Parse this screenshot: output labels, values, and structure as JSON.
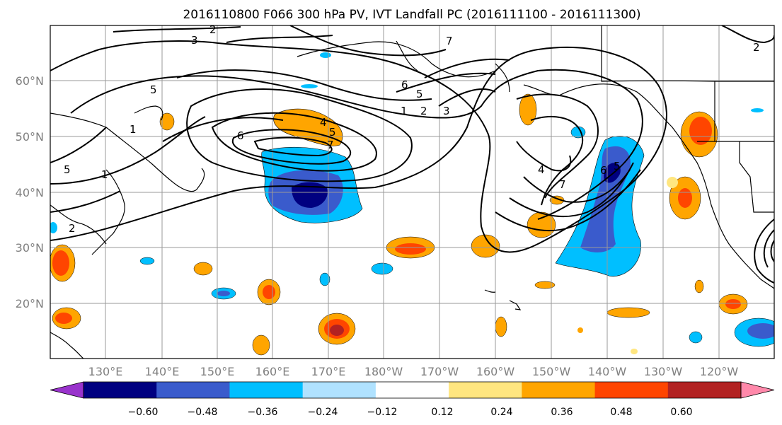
{
  "title": "2016110800 F066 300 hPa PV, IVT Landfall PC (2016111100 - 2016111300)",
  "lat_labels": [
    "60°N",
    "50°N",
    "40°N",
    "30°N",
    "20°N"
  ],
  "lon_labels": [
    "130°E",
    "140°E",
    "150°E",
    "160°E",
    "170°E",
    "180°W",
    "170°W",
    "160°W",
    "150°W",
    "140°W",
    "130°W",
    "120°W"
  ],
  "contour_labels": [
    "3",
    "2",
    "5",
    "1",
    "6",
    "5",
    "1",
    "4",
    "5",
    "7",
    "6",
    "5",
    "1",
    "2",
    "3",
    "7",
    "2",
    "4",
    "7",
    "6",
    "5",
    "2"
  ],
  "colorbar": {
    "ticks": [
      "−0.60",
      "−0.48",
      "−0.36",
      "−0.24",
      "−0.12",
      "0.12",
      "0.24",
      "0.36",
      "0.48",
      "0.60"
    ],
    "colors": [
      "#9933cc",
      "#000080",
      "#3a5bcc",
      "#00bfff",
      "#b0e2ff",
      "#ffffff",
      "#ffe680",
      "#ffa500",
      "#ff4500",
      "#b22222",
      "#ff88aa"
    ]
  }
}
